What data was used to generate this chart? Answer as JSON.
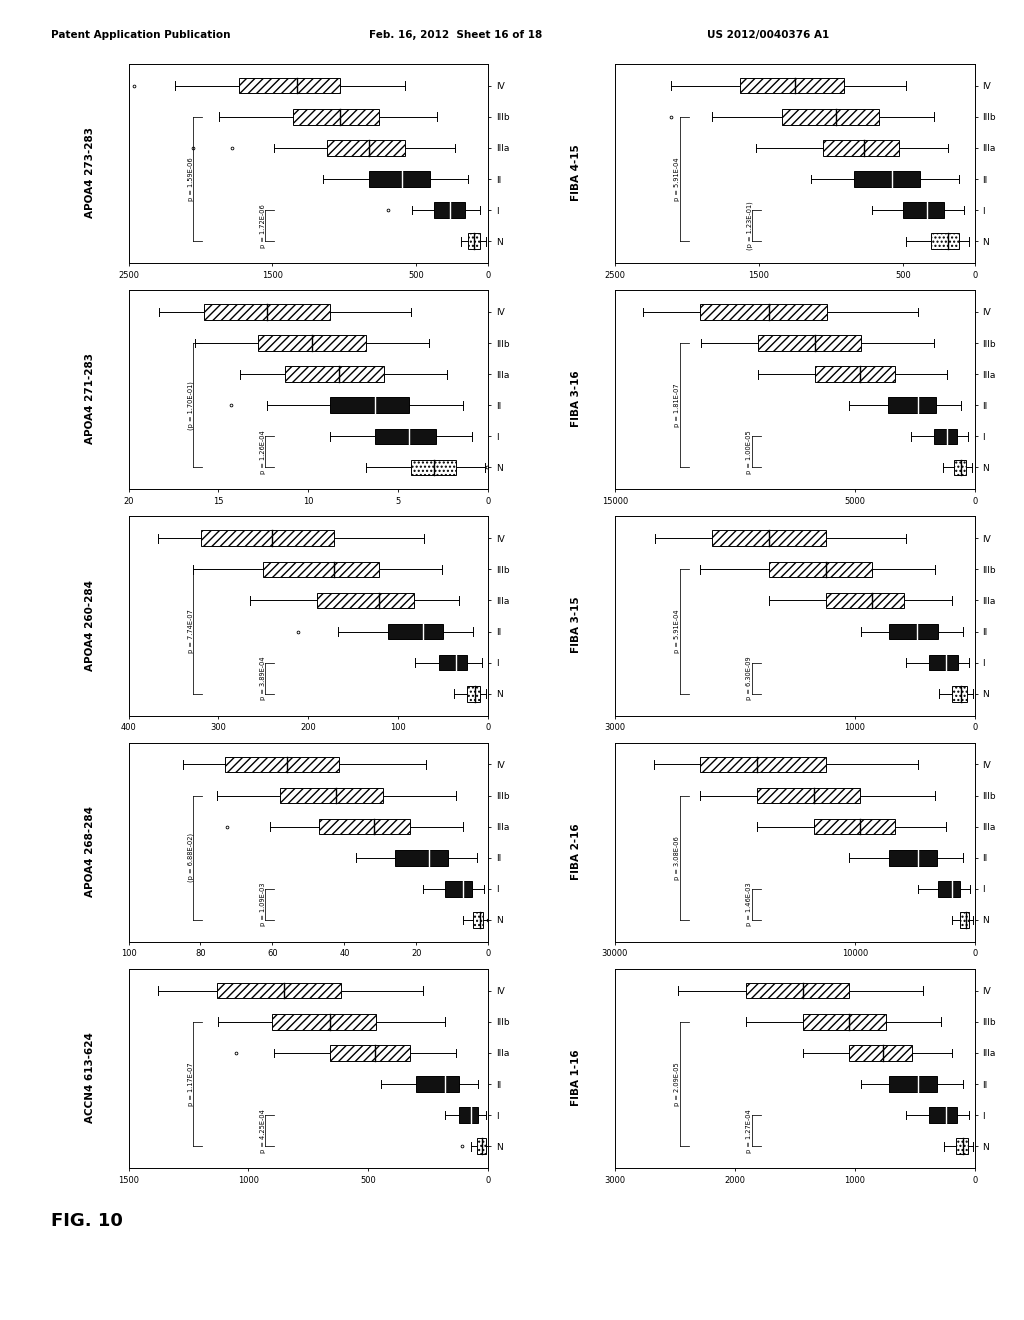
{
  "header_left": "Patent Application Publication",
  "header_mid": "Feb. 16, 2012  Sheet 16 of 18",
  "header_right": "US 2012/0040376 A1",
  "fig_label": "FIG. 10",
  "plots": [
    {
      "title": "APOA4 273-283",
      "xlim": [
        0,
        2500
      ],
      "xticks": [
        0,
        500,
        1500,
        2500
      ],
      "xticklabels": [
        "0",
        "500",
        "1500",
        "2500"
      ],
      "pval1": "p = 1.59E-06",
      "pval2": "p = 1.72E-06",
      "pval1_paren": false,
      "pval2_paren": false,
      "categories": [
        "N",
        "I",
        "II",
        "IIIa",
        "IIIb",
        "IV"
      ],
      "boxes": [
        {
          "med": 100,
          "q1": 60,
          "q3": 145,
          "whislo": 15,
          "whishi": 190,
          "outliers": [],
          "style": "dotted_white"
        },
        {
          "med": 270,
          "q1": 165,
          "q3": 375,
          "whislo": 60,
          "whishi": 530,
          "outliers": [
            700
          ],
          "style": "solid_black"
        },
        {
          "med": 600,
          "q1": 405,
          "q3": 830,
          "whislo": 140,
          "whishi": 1150,
          "outliers": [],
          "style": "solid_black"
        },
        {
          "med": 830,
          "q1": 580,
          "q3": 1120,
          "whislo": 230,
          "whishi": 1490,
          "outliers": [
            1780,
            2050
          ],
          "style": "hatched"
        },
        {
          "med": 1030,
          "q1": 760,
          "q3": 1355,
          "whislo": 360,
          "whishi": 1870,
          "outliers": [],
          "style": "hatched"
        },
        {
          "med": 1330,
          "q1": 1030,
          "q3": 1730,
          "whislo": 580,
          "whishi": 2180,
          "outliers": [
            2460
          ],
          "style": "hatched"
        }
      ]
    },
    {
      "title": "APOA4 271-283",
      "xlim": [
        0,
        20
      ],
      "xticks": [
        0,
        5,
        10,
        15,
        20
      ],
      "xticklabels": [
        "0",
        "5",
        "10",
        "15",
        "20"
      ],
      "pval1": "(p = 1.70E-01)",
      "pval2": "p = 1.26E-04",
      "pval1_paren": true,
      "pval2_paren": false,
      "categories": [
        "N",
        "I",
        "II",
        "IIIa",
        "IIIb",
        "IV"
      ],
      "boxes": [
        {
          "med": 3.0,
          "q1": 1.8,
          "q3": 4.3,
          "whislo": 0.2,
          "whishi": 6.8,
          "outliers": [
            0.1
          ],
          "style": "dotted_white"
        },
        {
          "med": 4.4,
          "q1": 2.9,
          "q3": 6.3,
          "whislo": 0.9,
          "whishi": 8.8,
          "outliers": [],
          "style": "solid_black"
        },
        {
          "med": 6.3,
          "q1": 4.4,
          "q3": 8.8,
          "whislo": 1.4,
          "whishi": 12.3,
          "outliers": [
            14.3
          ],
          "style": "solid_black"
        },
        {
          "med": 8.3,
          "q1": 5.8,
          "q3": 11.3,
          "whislo": 2.3,
          "whishi": 13.8,
          "outliers": [],
          "style": "hatched"
        },
        {
          "med": 9.8,
          "q1": 6.8,
          "q3": 12.8,
          "whislo": 3.3,
          "whishi": 16.3,
          "outliers": [],
          "style": "hatched"
        },
        {
          "med": 12.3,
          "q1": 8.8,
          "q3": 15.8,
          "whislo": 4.3,
          "whishi": 18.3,
          "outliers": [],
          "style": "hatched"
        }
      ]
    },
    {
      "title": "APOA4 260-284",
      "xlim": [
        0,
        400
      ],
      "xticks": [
        0,
        100,
        200,
        300,
        400
      ],
      "xticklabels": [
        "0",
        "100",
        "200",
        "300",
        "400"
      ],
      "pval1": "p = 7.74E-07",
      "pval2": "p = 3.89E-04",
      "pval1_paren": false,
      "pval2_paren": false,
      "categories": [
        "N",
        "I",
        "II",
        "IIIa",
        "IIIb",
        "IV"
      ],
      "boxes": [
        {
          "med": 15,
          "q1": 9,
          "q3": 24,
          "whislo": 3,
          "whishi": 38,
          "outliers": [],
          "style": "dotted_white"
        },
        {
          "med": 36,
          "q1": 24,
          "q3": 55,
          "whislo": 7,
          "whishi": 82,
          "outliers": [],
          "style": "solid_black"
        },
        {
          "med": 73,
          "q1": 50,
          "q3": 112,
          "whislo": 17,
          "whishi": 167,
          "outliers": [
            212
          ],
          "style": "solid_black"
        },
        {
          "med": 122,
          "q1": 83,
          "q3": 191,
          "whislo": 33,
          "whishi": 265,
          "outliers": [],
          "style": "hatched"
        },
        {
          "med": 172,
          "q1": 122,
          "q3": 250,
          "whislo": 52,
          "whishi": 328,
          "outliers": [],
          "style": "hatched"
        },
        {
          "med": 241,
          "q1": 172,
          "q3": 319,
          "whislo": 72,
          "whishi": 367,
          "outliers": [],
          "style": "hatched"
        }
      ]
    },
    {
      "title": "APOA4 268-284",
      "xlim": [
        0,
        100
      ],
      "xticks": [
        0,
        20,
        40,
        60,
        80,
        100
      ],
      "xticklabels": [
        "0",
        "20",
        "40",
        "60",
        "80",
        "100"
      ],
      "pval1": "(p = 6.88E-02)",
      "pval2": "p = 1.09E-03",
      "pval1_paren": true,
      "pval2_paren": false,
      "categories": [
        "N",
        "I",
        "II",
        "IIIa",
        "IIIb",
        "IV"
      ],
      "boxes": [
        {
          "med": 2.4,
          "q1": 1.4,
          "q3": 4.3,
          "whislo": 0.2,
          "whishi": 7.2,
          "outliers": [
            0.1
          ],
          "style": "dotted_white"
        },
        {
          "med": 7.2,
          "q1": 4.6,
          "q3": 12.0,
          "whislo": 1.1,
          "whishi": 18.2,
          "outliers": [],
          "style": "solid_black"
        },
        {
          "med": 16.4,
          "q1": 11.1,
          "q3": 26.0,
          "whislo": 3.3,
          "whishi": 36.7,
          "outliers": [],
          "style": "solid_black"
        },
        {
          "med": 31.8,
          "q1": 21.7,
          "q3": 47.2,
          "whislo": 7.2,
          "whishi": 60.8,
          "outliers": [
            72.5
          ],
          "style": "hatched"
        },
        {
          "med": 42.4,
          "q1": 29.4,
          "q3": 57.9,
          "whislo": 9.1,
          "whishi": 75.4,
          "outliers": [],
          "style": "hatched"
        },
        {
          "med": 55.9,
          "q1": 41.4,
          "q3": 73.3,
          "whislo": 17.3,
          "whishi": 84.9,
          "outliers": [],
          "style": "hatched"
        }
      ]
    },
    {
      "title": "ACCN4 613-624",
      "xlim": [
        0,
        1500
      ],
      "xticks": [
        0,
        500,
        1000,
        1500
      ],
      "xticklabels": [
        "0",
        "500",
        "1000",
        "1500"
      ],
      "pval1": "p = 1.17E-07",
      "pval2": "p = 4.25E-04",
      "pval1_paren": false,
      "pval2_paren": false,
      "categories": [
        "N",
        "I",
        "II",
        "IIIa",
        "IIIb",
        "IV"
      ],
      "boxes": [
        {
          "med": 27,
          "q1": 11,
          "q3": 46,
          "whislo": 2,
          "whishi": 73,
          "outliers": [
            111
          ],
          "style": "dotted_white"
        },
        {
          "med": 73,
          "q1": 43,
          "q3": 121,
          "whislo": 11,
          "whishi": 183,
          "outliers": [],
          "style": "solid_black"
        },
        {
          "med": 183,
          "q1": 121,
          "q3": 300,
          "whislo": 43,
          "whishi": 446,
          "outliers": [],
          "style": "solid_black"
        },
        {
          "med": 474,
          "q1": 329,
          "q3": 660,
          "whislo": 135,
          "whishi": 895,
          "outliers": [
            1050
          ],
          "style": "hatched"
        },
        {
          "med": 660,
          "q1": 470,
          "q3": 900,
          "whislo": 183,
          "whishi": 1129,
          "outliers": [],
          "style": "hatched"
        },
        {
          "med": 850,
          "q1": 613,
          "q3": 1133,
          "whislo": 271,
          "whishi": 1376,
          "outliers": [],
          "style": "hatched"
        }
      ]
    },
    {
      "title": "FIBA 4-15",
      "xlim": [
        0,
        2500
      ],
      "xticks": [
        0,
        500,
        1500,
        2500
      ],
      "xticklabels": [
        "0",
        "500",
        "1500",
        "2500"
      ],
      "pval1": "p = 5.91E-04",
      "pval2": "(p = 1.23E-01)",
      "pval1_paren": false,
      "pval2_paren": true,
      "categories": [
        "N",
        "I",
        "II",
        "IIIa",
        "IIIb",
        "IV"
      ],
      "boxes": [
        {
          "med": 185,
          "q1": 111,
          "q3": 302,
          "whislo": 43,
          "whishi": 479,
          "outliers": [],
          "style": "dotted_white"
        },
        {
          "med": 330,
          "q1": 214,
          "q3": 497,
          "whislo": 73,
          "whishi": 713,
          "outliers": [],
          "style": "solid_black"
        },
        {
          "med": 574,
          "q1": 380,
          "q3": 838,
          "whislo": 111,
          "whishi": 1140,
          "outliers": [],
          "style": "solid_black"
        },
        {
          "med": 770,
          "q1": 527,
          "q3": 1054,
          "whislo": 185,
          "whishi": 1522,
          "outliers": [],
          "style": "hatched"
        },
        {
          "med": 965,
          "q1": 668,
          "q3": 1337,
          "whislo": 283,
          "whishi": 1824,
          "outliers": [
            2113
          ],
          "style": "hatched"
        },
        {
          "med": 1248,
          "q1": 912,
          "q3": 1629,
          "whislo": 479,
          "whishi": 2113,
          "outliers": [],
          "style": "hatched"
        }
      ]
    },
    {
      "title": "FIBA 3-16",
      "xlim": [
        0,
        15000
      ],
      "xticks": [
        0,
        5000,
        15000
      ],
      "xticklabels": [
        "0",
        "5000",
        "15000"
      ],
      "pval1": "p = 1.81E-07",
      "pval2": "p = 1.00E-05",
      "pval1_paren": false,
      "pval2_paren": false,
      "categories": [
        "N",
        "I",
        "II",
        "IIIa",
        "IIIb",
        "IV"
      ],
      "boxes": [
        {
          "med": 566,
          "q1": 371,
          "q3": 849,
          "whislo": 136,
          "whishi": 1345,
          "outliers": [],
          "style": "dotted_white"
        },
        {
          "med": 1140,
          "q1": 755,
          "q3": 1715,
          "whislo": 283,
          "whishi": 2669,
          "outliers": [],
          "style": "solid_black"
        },
        {
          "med": 2378,
          "q1": 1609,
          "q3": 3614,
          "whislo": 566,
          "whishi": 5244,
          "outliers": [],
          "style": "solid_black"
        },
        {
          "med": 4768,
          "q1": 3333,
          "q3": 6664,
          "whislo": 1140,
          "whishi": 9044,
          "outliers": [],
          "style": "hatched"
        },
        {
          "med": 6664,
          "q1": 4757,
          "q3": 9053,
          "whislo": 1715,
          "whishi": 11432,
          "outliers": [],
          "style": "hatched"
        },
        {
          "med": 8576,
          "q1": 6180,
          "q3": 11441,
          "whislo": 2378,
          "whishi": 13820,
          "outliers": [],
          "style": "hatched"
        }
      ]
    },
    {
      "title": "FIBA 3-15",
      "xlim": [
        0,
        3000
      ],
      "xticks": [
        0,
        1000,
        3000
      ],
      "xticklabels": [
        "0",
        "1000",
        "3000"
      ],
      "pval1": "p = 5.91E-04",
      "pval2": "p = 6.30E-09",
      "pval1_paren": false,
      "pval2_paren": false,
      "categories": [
        "N",
        "I",
        "II",
        "IIIa",
        "IIIb",
        "IV"
      ],
      "boxes": [
        {
          "med": 112,
          "q1": 66,
          "q3": 190,
          "whislo": 17,
          "whishi": 302,
          "outliers": [],
          "style": "dotted_white"
        },
        {
          "med": 239,
          "q1": 141,
          "q3": 381,
          "whislo": 46,
          "whishi": 571,
          "outliers": [],
          "style": "solid_black"
        },
        {
          "med": 478,
          "q1": 307,
          "q3": 717,
          "whislo": 95,
          "whishi": 952,
          "outliers": [],
          "style": "solid_black"
        },
        {
          "med": 854,
          "q1": 590,
          "q3": 1238,
          "whislo": 190,
          "whishi": 1713,
          "outliers": [],
          "style": "hatched"
        },
        {
          "med": 1239,
          "q1": 858,
          "q3": 1717,
          "whislo": 332,
          "whishi": 2287,
          "outliers": [],
          "style": "hatched"
        },
        {
          "med": 1713,
          "q1": 1239,
          "q3": 2194,
          "whislo": 571,
          "whishi": 2669,
          "outliers": [],
          "style": "hatched"
        }
      ]
    },
    {
      "title": "FIBA 2-16",
      "xlim": [
        0,
        30000
      ],
      "xticks": [
        0,
        10000,
        30000
      ],
      "xticklabels": [
        "0",
        "10000",
        "30000"
      ],
      "pval1": "p = 3.08E-06",
      "pval2": "p = 1.46E-03",
      "pval1_paren": false,
      "pval2_paren": false,
      "categories": [
        "N",
        "I",
        "II",
        "IIIa",
        "IIIb",
        "IV"
      ],
      "boxes": [
        {
          "med": 762,
          "q1": 478,
          "q3": 1244,
          "whislo": 141,
          "whishi": 1907,
          "outliers": [],
          "style": "dotted_white"
        },
        {
          "med": 1907,
          "q1": 1244,
          "q3": 3051,
          "whislo": 381,
          "whishi": 4767,
          "outliers": [],
          "style": "solid_black"
        },
        {
          "med": 4767,
          "q1": 3147,
          "q3": 7151,
          "whislo": 953,
          "whishi": 10487,
          "outliers": [],
          "style": "solid_black"
        },
        {
          "med": 9534,
          "q1": 6679,
          "q3": 13397,
          "whislo": 2384,
          "whishi": 18158,
          "outliers": [],
          "style": "hatched"
        },
        {
          "med": 13397,
          "q1": 9534,
          "q3": 18158,
          "whislo": 3337,
          "whishi": 22919,
          "outliers": [],
          "style": "hatched"
        },
        {
          "med": 18158,
          "q1": 12396,
          "q3": 22919,
          "whislo": 4767,
          "whishi": 26775,
          "outliers": [],
          "style": "hatched"
        }
      ]
    },
    {
      "title": "FIBA 1-16",
      "xlim": [
        0,
        3000
      ],
      "xticks": [
        0,
        1000,
        2000,
        3000
      ],
      "xticklabels": [
        "0",
        "1000",
        "2000",
        "3000"
      ],
      "pval1": "p = 2.09E-05",
      "pval2": "p = 1.27E-04",
      "pval1_paren": false,
      "pval2_paren": false,
      "categories": [
        "N",
        "I",
        "II",
        "IIIa",
        "IIIb",
        "IV"
      ],
      "boxes": [
        {
          "med": 95,
          "q1": 57,
          "q3": 161,
          "whislo": 13,
          "whishi": 255,
          "outliers": [],
          "style": "dotted_white"
        },
        {
          "med": 238,
          "q1": 152,
          "q3": 381,
          "whislo": 47,
          "whishi": 571,
          "outliers": [],
          "style": "solid_black"
        },
        {
          "med": 476,
          "q1": 314,
          "q3": 714,
          "whislo": 95,
          "whishi": 952,
          "outliers": [],
          "style": "solid_black"
        },
        {
          "med": 762,
          "q1": 524,
          "q3": 1048,
          "whislo": 190,
          "whishi": 1429,
          "outliers": [],
          "style": "hatched"
        },
        {
          "med": 1048,
          "q1": 743,
          "q3": 1430,
          "whislo": 286,
          "whishi": 1905,
          "outliers": [],
          "style": "hatched"
        },
        {
          "med": 1430,
          "q1": 1048,
          "q3": 1905,
          "whislo": 429,
          "whishi": 2476,
          "outliers": [],
          "style": "hatched"
        }
      ]
    }
  ]
}
